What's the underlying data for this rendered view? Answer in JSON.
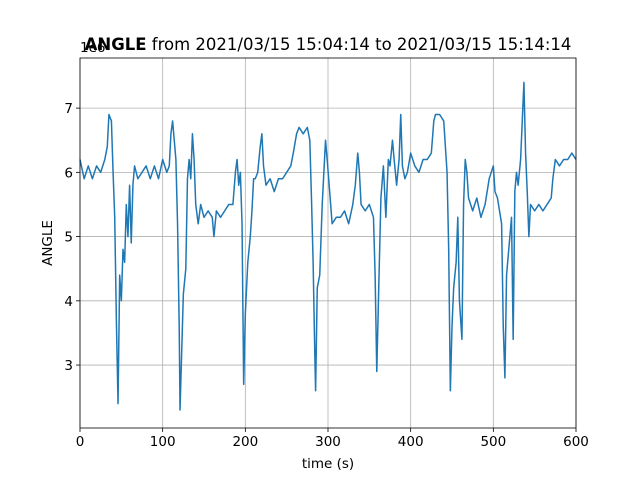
{
  "chart_data": {
    "type": "line",
    "title_bold": "ANGLE",
    "title": "from 2021/03/15 15:04:14 to 2021/03/15 15:14:14",
    "x_label": "time (s)",
    "y_label": "ANGLE",
    "y_offset_label": "1e6",
    "color": "#1f77b4",
    "grid": true,
    "xlim": [
      0,
      600
    ],
    "xticks": [
      0,
      100,
      200,
      300,
      400,
      500,
      600
    ],
    "ylim": [
      2.02,
      7.78
    ],
    "yticks": [
      3,
      4,
      5,
      6,
      7
    ],
    "x": [
      0,
      5,
      10,
      15,
      20,
      25,
      30,
      33,
      35,
      38,
      40,
      42,
      44,
      46,
      48,
      50,
      52,
      54,
      56,
      58,
      60,
      62,
      64,
      66,
      70,
      75,
      80,
      85,
      90,
      95,
      100,
      105,
      108,
      110,
      112,
      114,
      116,
      118,
      120,
      121,
      123,
      125,
      128,
      130,
      132,
      134,
      136,
      138,
      140,
      143,
      146,
      150,
      155,
      160,
      162,
      165,
      170,
      175,
      180,
      185,
      188,
      190,
      192,
      194,
      196,
      198,
      200,
      203,
      206,
      208,
      210,
      212,
      215,
      218,
      220,
      222,
      225,
      230,
      235,
      240,
      245,
      250,
      255,
      258,
      262,
      265,
      270,
      275,
      278,
      280,
      282,
      284,
      285,
      287,
      290,
      293,
      295,
      297,
      299,
      302,
      305,
      310,
      315,
      320,
      325,
      330,
      333,
      336,
      338,
      340,
      345,
      350,
      355,
      357,
      359,
      361,
      364,
      367,
      370,
      373,
      375,
      378,
      380,
      383,
      386,
      388,
      390,
      393,
      396,
      400,
      405,
      410,
      415,
      420,
      425,
      428,
      430,
      435,
      440,
      442,
      444,
      446,
      448,
      450,
      452,
      455,
      457,
      459,
      462,
      464,
      466,
      468,
      470,
      475,
      480,
      485,
      490,
      495,
      500,
      502,
      505,
      510,
      512,
      514,
      516,
      518,
      520,
      522,
      524,
      526,
      528,
      530,
      533,
      535,
      537,
      539,
      541,
      543,
      545,
      550,
      555,
      560,
      565,
      570,
      572,
      575,
      580,
      585,
      590,
      595,
      600
    ],
    "values": [
      6.2,
      5.9,
      6.1,
      5.9,
      6.1,
      6.0,
      6.2,
      6.4,
      6.9,
      6.8,
      6.0,
      5.3,
      3.7,
      2.4,
      4.4,
      4.0,
      4.8,
      4.6,
      5.5,
      5.0,
      5.8,
      4.9,
      5.8,
      6.1,
      5.9,
      6.0,
      6.1,
      5.9,
      6.1,
      5.9,
      6.2,
      6.0,
      6.1,
      6.6,
      6.8,
      6.5,
      6.2,
      5.2,
      3.6,
      2.3,
      3.2,
      4.1,
      4.5,
      5.9,
      6.2,
      5.9,
      6.6,
      6.2,
      5.5,
      5.2,
      5.5,
      5.3,
      5.4,
      5.3,
      5.0,
      5.4,
      5.3,
      5.4,
      5.5,
      5.5,
      6.0,
      6.2,
      5.8,
      6.0,
      5.2,
      2.7,
      3.8,
      4.6,
      5.0,
      5.4,
      5.9,
      5.9,
      6.0,
      6.4,
      6.6,
      6.1,
      5.8,
      5.9,
      5.7,
      5.9,
      5.9,
      6.0,
      6.1,
      6.3,
      6.6,
      6.7,
      6.6,
      6.7,
      6.5,
      5.6,
      4.6,
      3.2,
      2.6,
      4.2,
      4.4,
      5.5,
      6.0,
      6.5,
      6.2,
      5.7,
      5.2,
      5.3,
      5.3,
      5.4,
      5.2,
      5.5,
      5.8,
      6.3,
      6.0,
      5.5,
      5.4,
      5.5,
      5.3,
      4.4,
      2.9,
      4.0,
      5.6,
      6.1,
      5.3,
      6.2,
      6.1,
      6.5,
      6.2,
      5.8,
      6.2,
      6.9,
      6.1,
      5.9,
      6.0,
      6.3,
      6.1,
      6.0,
      6.2,
      6.2,
      6.3,
      6.8,
      6.9,
      6.9,
      6.8,
      6.4,
      6.0,
      4.8,
      2.6,
      3.6,
      4.2,
      4.6,
      5.3,
      4.0,
      3.4,
      5.5,
      6.2,
      6.0,
      5.6,
      5.4,
      5.6,
      5.3,
      5.5,
      5.9,
      6.1,
      5.7,
      5.6,
      5.2,
      3.6,
      2.8,
      4.4,
      4.7,
      5.0,
      5.3,
      3.4,
      5.7,
      6.0,
      5.8,
      6.2,
      6.8,
      7.4,
      6.3,
      5.7,
      5.0,
      5.5,
      5.4,
      5.5,
      5.4,
      5.5,
      5.6,
      5.9,
      6.2,
      6.1,
      6.2,
      6.2,
      6.3,
      6.2
    ]
  }
}
